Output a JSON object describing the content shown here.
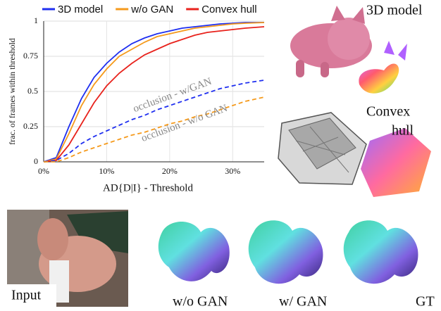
{
  "chart_data": {
    "type": "line",
    "xlabel": "AD{D|I} - Threshold",
    "ylabel": "frac. of frames within threshold",
    "x": [
      0,
      2,
      4,
      6,
      8,
      10,
      12,
      14,
      16,
      18,
      20,
      22,
      24,
      26,
      28,
      30,
      32,
      35
    ],
    "series": [
      {
        "name": "3D model",
        "color": "#1f2ff0",
        "values": [
          0,
          0.03,
          0.25,
          0.45,
          0.6,
          0.7,
          0.78,
          0.84,
          0.88,
          0.91,
          0.93,
          0.95,
          0.96,
          0.97,
          0.98,
          0.985,
          0.99,
          0.99
        ]
      },
      {
        "name": "w/o GAN",
        "color": "#f59a1c",
        "values": [
          0,
          0.02,
          0.2,
          0.4,
          0.55,
          0.66,
          0.75,
          0.8,
          0.85,
          0.89,
          0.91,
          0.93,
          0.95,
          0.96,
          0.97,
          0.98,
          0.985,
          0.99
        ]
      },
      {
        "name": "Convex hull",
        "color": "#e8221c",
        "values": [
          0,
          0.01,
          0.12,
          0.27,
          0.42,
          0.54,
          0.63,
          0.7,
          0.76,
          0.8,
          0.84,
          0.87,
          0.9,
          0.92,
          0.93,
          0.94,
          0.95,
          0.96
        ]
      },
      {
        "name": "occlusion - w/GAN",
        "color": "#1f2ff0",
        "dashed": true,
        "legend": false,
        "values": [
          0,
          0.01,
          0.06,
          0.13,
          0.18,
          0.22,
          0.26,
          0.3,
          0.33,
          0.37,
          0.4,
          0.43,
          0.46,
          0.49,
          0.52,
          0.54,
          0.56,
          0.58
        ]
      },
      {
        "name": "occlusion - w/o GAN",
        "color": "#f59a1c",
        "dashed": true,
        "legend": false,
        "values": [
          0,
          0,
          0.03,
          0.07,
          0.1,
          0.13,
          0.16,
          0.19,
          0.21,
          0.24,
          0.27,
          0.29,
          0.32,
          0.34,
          0.37,
          0.4,
          0.43,
          0.46
        ]
      }
    ],
    "xlim": [
      0,
      35
    ],
    "xticks": [
      {
        "value": 0,
        "label": "0%"
      },
      {
        "value": 10,
        "label": "10%"
      },
      {
        "value": 20,
        "label": "20%"
      },
      {
        "value": 30,
        "label": "30%"
      }
    ],
    "ylim": [
      0,
      1
    ],
    "yticks": [
      0,
      0.25,
      0.5,
      0.75,
      1
    ],
    "grid": true,
    "legend": "top"
  },
  "renders": {
    "model": "3D model",
    "hull_line1": "Convex",
    "hull_line2": "hull"
  },
  "results": {
    "input": "Input",
    "without_gan": "w/o GAN",
    "with_gan": "w/ GAN",
    "gt": "GT"
  }
}
